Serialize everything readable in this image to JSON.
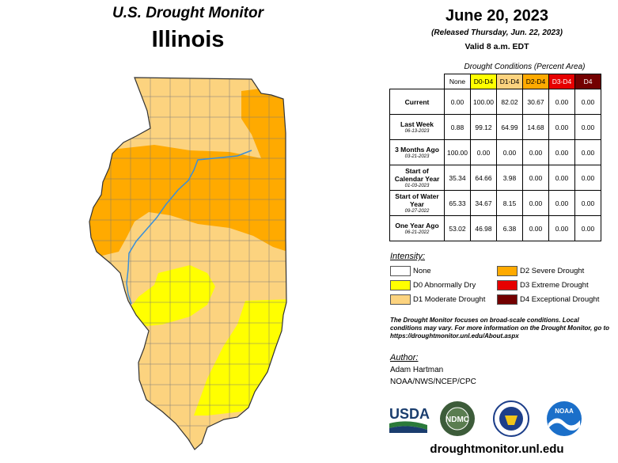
{
  "header": {
    "title": "U.S. Drought Monitor",
    "state": "Illinois",
    "date": "June 20, 2023",
    "released": "(Released Thursday, Jun. 22, 2023)",
    "valid": "Valid 8 a.m. EDT"
  },
  "table": {
    "title": "Drought Conditions (Percent Area)",
    "columns": [
      "None",
      "D0-D4",
      "D1-D4",
      "D2-D4",
      "D3-D4",
      "D4"
    ],
    "column_colors": [
      "#ffffff",
      "#ffff00",
      "#fcd37f",
      "#ffaa00",
      "#e60000",
      "#730000"
    ],
    "rows": [
      {
        "label": "Current",
        "date": "",
        "values": [
          "0.00",
          "100.00",
          "82.02",
          "30.67",
          "0.00",
          "0.00"
        ]
      },
      {
        "label": "Last Week",
        "date": "06-13-2023",
        "values": [
          "0.88",
          "99.12",
          "64.99",
          "14.68",
          "0.00",
          "0.00"
        ]
      },
      {
        "label": "3 Months Ago",
        "date": "03-21-2023",
        "values": [
          "100.00",
          "0.00",
          "0.00",
          "0.00",
          "0.00",
          "0.00"
        ]
      },
      {
        "label": "Start of Calendar Year",
        "date": "01-03-2023",
        "values": [
          "35.34",
          "64.66",
          "3.98",
          "0.00",
          "0.00",
          "0.00"
        ]
      },
      {
        "label": "Start of Water Year",
        "date": "09-27-2022",
        "values": [
          "65.33",
          "34.67",
          "8.15",
          "0.00",
          "0.00",
          "0.00"
        ]
      },
      {
        "label": "One Year Ago",
        "date": "06-21-2022",
        "values": [
          "53.02",
          "46.98",
          "6.38",
          "0.00",
          "0.00",
          "0.00"
        ]
      }
    ]
  },
  "legend": {
    "title": "Intensity:",
    "items": [
      {
        "label": "None",
        "color": "#ffffff"
      },
      {
        "label": "D0 Abnormally Dry",
        "color": "#ffff00"
      },
      {
        "label": "D1 Moderate Drought",
        "color": "#fcd37f"
      },
      {
        "label": "D2 Severe Drought",
        "color": "#ffaa00"
      },
      {
        "label": "D3 Extreme Drought",
        "color": "#e60000"
      },
      {
        "label": "D4 Exceptional Drought",
        "color": "#730000"
      }
    ]
  },
  "note": "The Drought Monitor focuses on broad-scale conditions. Local conditions may vary. For more information on the Drought Monitor, go to https://droughtmonitor.unl.edu/About.aspx",
  "author": {
    "title": "Author:",
    "name": "Adam Hartman",
    "org": "NOAA/NWS/NCEP/CPC"
  },
  "logos": {
    "usda": "USDA",
    "ndmc": "NDMC",
    "ndmc_ring": "NATIONAL DROUGHT MITIGATION CENTER",
    "noaa": "NOAA"
  },
  "url": "droughtmonitor.unl.edu"
}
